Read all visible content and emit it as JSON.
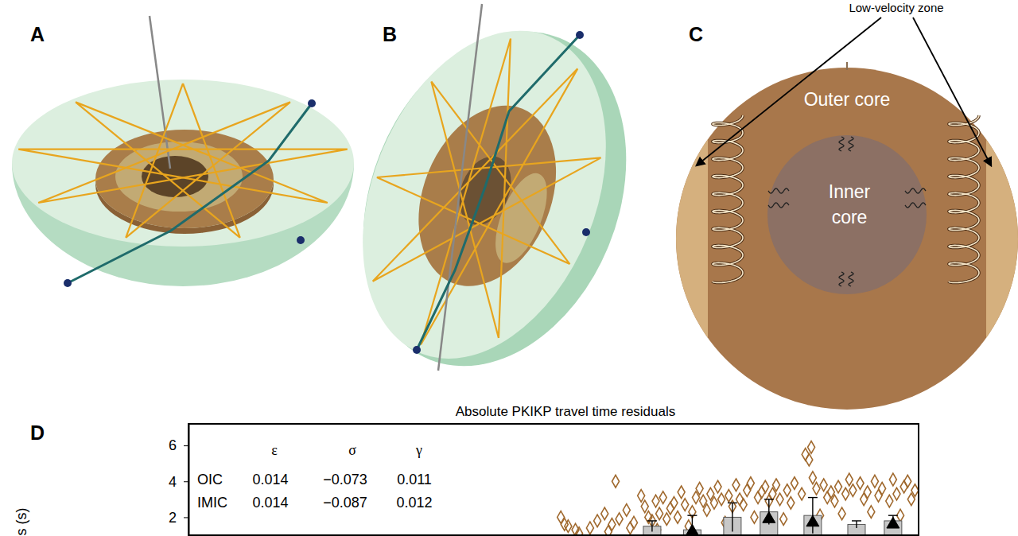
{
  "panels": {
    "labels": [
      "A",
      "B",
      "C",
      "D"
    ],
    "low_velocity_zone": "Low-velocity zone",
    "outer_core": "Outer core",
    "inner_core": [
      "Inner",
      "core"
    ]
  },
  "chart_data": {
    "type": "scatter",
    "title": "Absolute PKIKP travel time residuals",
    "y_label": "s (s)",
    "xlim": [
      0,
      100
    ],
    "ylim": [
      1.0,
      7.2
    ],
    "yticks": [
      2,
      4,
      6
    ],
    "tick_labels": "y",
    "grid": false,
    "table": {
      "columns": [
        "ε",
        "σ",
        "γ"
      ],
      "rows": [
        {
          "label": "OIC",
          "cells": [
            "0.014",
            "−0.073",
            "0.011"
          ]
        },
        {
          "label": "IMIC",
          "cells": [
            "0.014",
            "−0.087",
            "0.012"
          ]
        }
      ]
    },
    "series": [
      {
        "type": "scatter",
        "marker": "diamond",
        "color": "#a0692e",
        "x": [
          51,
          51.5,
          52,
          53,
          55,
          56,
          57,
          58,
          59,
          60,
          61,
          62,
          62.5,
          63,
          63.5,
          64,
          64.5,
          65,
          65.5,
          66,
          66.5,
          67,
          67.5,
          68,
          69,
          69.5,
          70,
          70.5,
          71,
          71.5,
          72,
          72.5,
          73,
          74,
          74.5,
          75,
          75.5,
          76,
          76.5,
          77,
          78,
          78.5,
          79,
          79.5,
          80,
          80.5,
          81,
          82,
          82.5,
          83,
          84,
          84.5,
          85,
          85.3,
          85.5,
          86,
          87,
          87.5,
          88,
          88.5,
          89,
          90,
          90.5,
          91,
          92,
          92.5,
          93,
          94,
          94.5,
          95,
          96,
          96.5,
          97,
          98,
          98.5,
          99,
          99.5,
          53.5,
          57.5,
          60.5,
          64.2,
          68.5,
          73.5,
          77.5,
          81.5,
          86.5,
          89.5,
          93.5,
          97.5,
          58.5
        ],
        "values": [
          2.0,
          1.6,
          1.5,
          1.3,
          1.4,
          1.8,
          2.2,
          1.6,
          1.9,
          2.4,
          1.7,
          3.2,
          2.6,
          2.0,
          1.8,
          2.9,
          2.2,
          3.1,
          1.9,
          2.5,
          2.8,
          2.0,
          3.4,
          2.7,
          2.3,
          3.1,
          3.6,
          2.9,
          2.4,
          3.3,
          2.8,
          3.7,
          3.0,
          3.2,
          2.6,
          3.8,
          3.0,
          2.7,
          3.5,
          3.9,
          3.1,
          3.4,
          3.7,
          2.9,
          3.3,
          3.8,
          3.0,
          3.5,
          2.8,
          3.9,
          3.3,
          5.5,
          5.2,
          5.9,
          4.2,
          3.6,
          3.8,
          3.1,
          3.4,
          2.9,
          3.7,
          3.3,
          4.1,
          3.5,
          3.9,
          3.0,
          3.4,
          4.0,
          3.2,
          3.6,
          2.9,
          4.1,
          3.3,
          3.7,
          4.0,
          3.0,
          3.5,
          1.1,
          1.2,
          1.4,
          1.3,
          1.5,
          1.7,
          2.0,
          1.9,
          2.1,
          2.2,
          2.3,
          2.1,
          4.0
        ]
      },
      {
        "type": "bar",
        "color": "#c8c8c8",
        "x": [
          63.5,
          69,
          74.5,
          79.5,
          85.5,
          91.5,
          96.5
        ],
        "values": [
          1.5,
          1.3,
          2.0,
          2.3,
          2.1,
          1.6,
          1.8
        ],
        "errors": [
          0.3,
          0.8,
          0.8,
          0.7,
          1.0,
          0.2,
          0.3
        ]
      },
      {
        "type": "scatter",
        "marker": "triangle",
        "color": "#000000",
        "x": [
          69,
          79.5,
          85.5,
          96.5
        ],
        "values": [
          1.2,
          1.9,
          1.7,
          1.6
        ]
      }
    ]
  }
}
